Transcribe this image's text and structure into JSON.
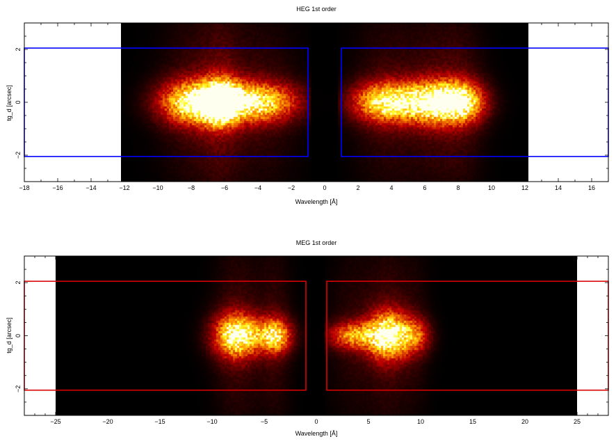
{
  "chart_data": [
    {
      "type": "heatmap",
      "title": "HEG 1st order",
      "xlabel": "Wavelength [Å]",
      "ylabel": "tg_d [arcsec]",
      "xlim": [
        -18,
        17
      ],
      "ylim": [
        -3,
        3
      ],
      "data_extent_x": [
        -12.2,
        12.2
      ],
      "xticks": [
        -18,
        -16,
        -14,
        -12,
        -10,
        -8,
        -6,
        -4,
        -2,
        0,
        2,
        4,
        6,
        8,
        10,
        12,
        14,
        16
      ],
      "yticks": [
        -2,
        0,
        2
      ],
      "colormap": "black-red-yellow-white",
      "background_color": "#000000",
      "blobs": [
        {
          "x": -7.8,
          "y": 0,
          "sx": 1.4,
          "sy": 0.55,
          "peak": 0.95
        },
        {
          "x": -6.2,
          "y": 0,
          "sx": 0.8,
          "sy": 0.55,
          "peak": 1.0
        },
        {
          "x": -4.0,
          "y": 0,
          "sx": 1.6,
          "sy": 0.5,
          "peak": 0.85
        },
        {
          "x": 3.6,
          "y": 0,
          "sx": 1.3,
          "sy": 0.5,
          "peak": 0.85
        },
        {
          "x": 6.7,
          "y": 0,
          "sx": 1.4,
          "sy": 0.55,
          "peak": 1.0
        },
        {
          "x": 8.3,
          "y": 0,
          "sx": 0.9,
          "sy": 0.5,
          "peak": 0.6
        }
      ],
      "regions": [
        {
          "x": [
            -18,
            -1
          ],
          "y": [
            -2.05,
            2.05
          ]
        },
        {
          "x": [
            1,
            17
          ],
          "y": [
            -2.05,
            2.05
          ]
        }
      ],
      "region_color": "#0000ff"
    },
    {
      "type": "heatmap",
      "title": "MEG 1st order",
      "xlabel": "Wavelength [Å]",
      "ylabel": "tg_d [arcsec]",
      "xlim": [
        -28,
        28
      ],
      "ylim": [
        -3,
        3
      ],
      "data_extent_x": [
        -25,
        25
      ],
      "xticks": [
        -25,
        -20,
        -15,
        -10,
        -5,
        0,
        5,
        10,
        15,
        20,
        25
      ],
      "yticks": [
        -2,
        0,
        2
      ],
      "colormap": "black-red-yellow-white",
      "background_color": "#000000",
      "blobs": [
        {
          "x": -7.6,
          "y": 0,
          "sx": 1.5,
          "sy": 0.55,
          "peak": 1.0
        },
        {
          "x": -4.0,
          "y": 0,
          "sx": 1.1,
          "sy": 0.45,
          "peak": 0.8
        },
        {
          "x": 3.5,
          "y": 0,
          "sx": 1.6,
          "sy": 0.35,
          "peak": 0.6
        },
        {
          "x": 6.9,
          "y": 0,
          "sx": 1.4,
          "sy": 0.6,
          "peak": 1.0
        },
        {
          "x": 9.5,
          "y": 0,
          "sx": 1.0,
          "sy": 0.45,
          "peak": 0.45
        }
      ],
      "regions": [
        {
          "x": [
            -28,
            -1
          ],
          "y": [
            -2.05,
            2.05
          ]
        },
        {
          "x": [
            1,
            28
          ],
          "y": [
            -2.05,
            2.05
          ]
        }
      ],
      "region_color": "#dd0000"
    }
  ]
}
